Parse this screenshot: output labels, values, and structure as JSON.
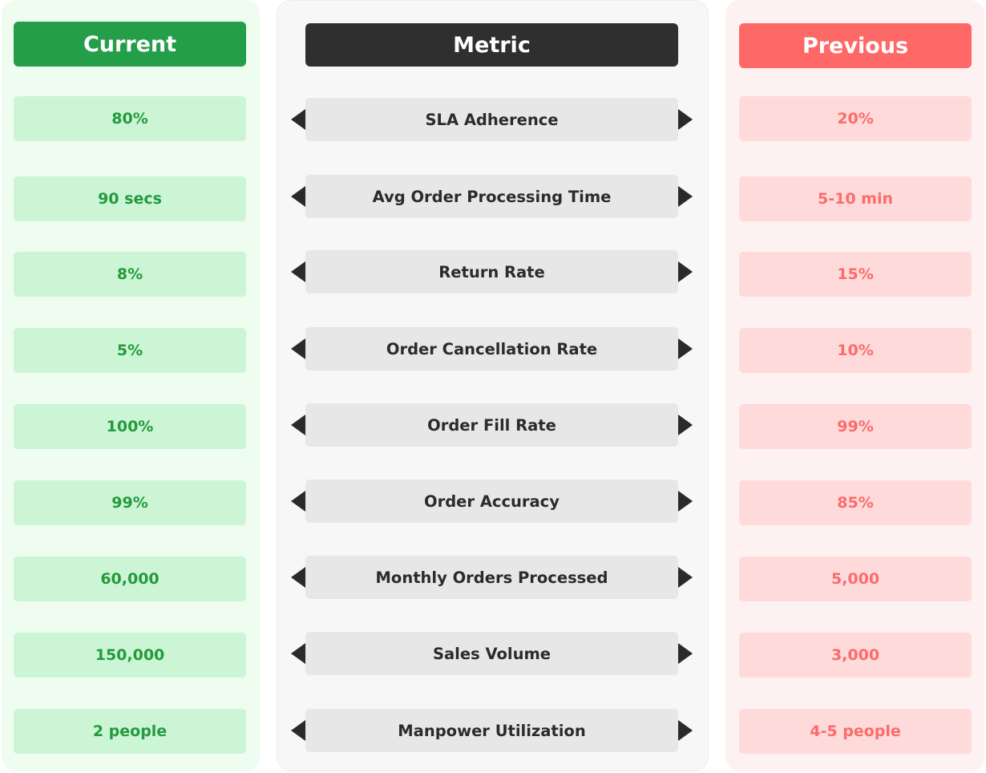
{
  "headers": {
    "current": "Current",
    "metric": "Metric",
    "previous": "Previous"
  },
  "rows": [
    {
      "current": "80%",
      "metric": "SLA Adherence",
      "previous": "20%"
    },
    {
      "current": "90 secs",
      "metric": "Avg Order Processing Time",
      "previous": "5-10 min"
    },
    {
      "current": "8%",
      "metric": "Return Rate",
      "previous": "15%"
    },
    {
      "current": "5%",
      "metric": "Order Cancellation Rate",
      "previous": "10%"
    },
    {
      "current": "100%",
      "metric": "Order Fill Rate",
      "previous": "99%"
    },
    {
      "current": "99%",
      "metric": "Order Accuracy",
      "previous": "85%"
    },
    {
      "current": "60,000",
      "metric": "Monthly Orders Processed",
      "previous": "5,000"
    },
    {
      "current": "150,000",
      "metric": "Sales Volume",
      "previous": "3,000"
    },
    {
      "current": "2 people",
      "metric": "Manpower Utilization",
      "previous": "4-5 people"
    }
  ],
  "colors": {
    "current_accent": "#259e49",
    "metric_accent": "#2f2f2f",
    "previous_accent": "#fe6867"
  },
  "icons": {
    "left": "triangle-left-icon",
    "right": "triangle-right-icon"
  }
}
